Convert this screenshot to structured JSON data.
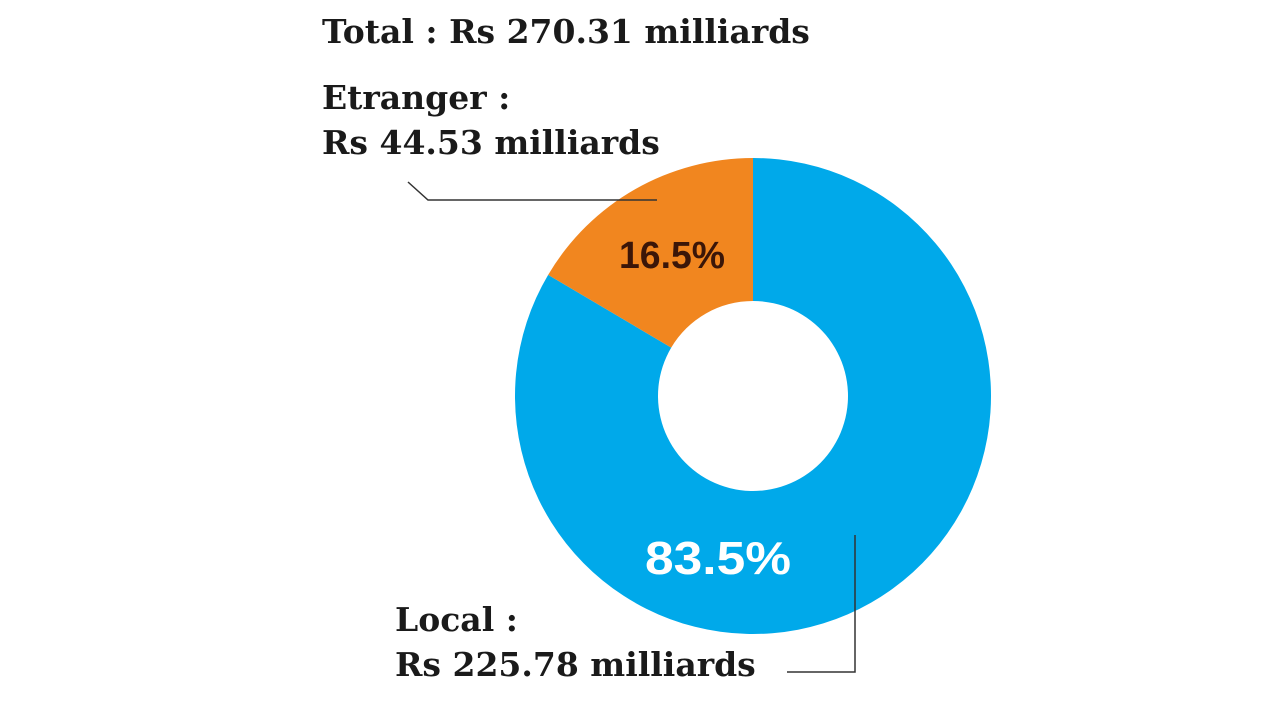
{
  "chart_data": {
    "type": "pie",
    "donut": true,
    "title": "Total : Rs 270.31 milliards",
    "categories": [
      "Local :",
      "Etranger :"
    ],
    "amounts": [
      "Rs 225.78 milliards",
      "Rs 44.53 milliards"
    ],
    "values": [
      83.5,
      16.5
    ],
    "value_labels": [
      "83.5%",
      "16.5%"
    ],
    "colors": [
      "#00a9ea",
      "#f1861f"
    ],
    "value_label_colors": [
      "#ffffff",
      "#3b1608"
    ]
  }
}
